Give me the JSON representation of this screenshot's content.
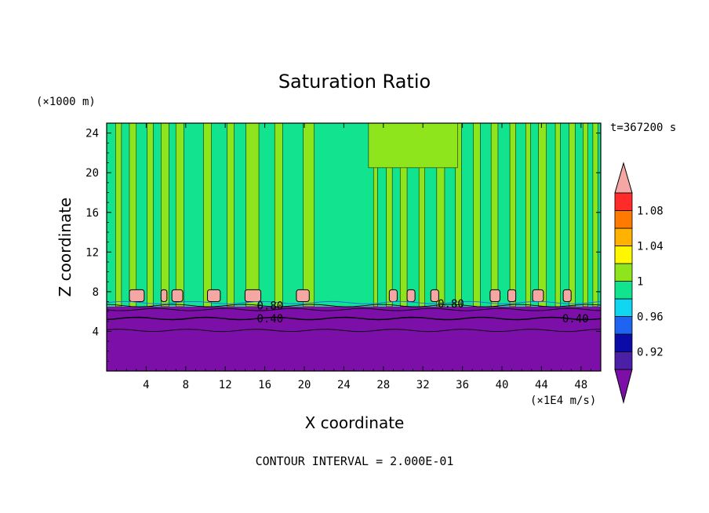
{
  "chart_data": {
    "type": "heatmap",
    "title": "Saturation Ratio",
    "xlabel": "X coordinate",
    "ylabel": "Z coordinate",
    "x_unit": "(×1E4 m/s)",
    "y_unit": "(×1000 m)",
    "time_label": "t=367200 s",
    "footer": "CONTOUR INTERVAL = 2.000E-01",
    "xlim": [
      0,
      50
    ],
    "ylim": [
      0,
      25
    ],
    "x_ticks": [
      4,
      8,
      12,
      16,
      20,
      24,
      28,
      32,
      36,
      40,
      44,
      48
    ],
    "y_ticks": [
      4,
      8,
      12,
      16,
      20,
      24
    ],
    "x_tick_labels": [
      "4",
      "8",
      "12",
      "16",
      "20",
      "24",
      "28",
      "32",
      "36",
      "40",
      "44",
      "48"
    ],
    "y_tick_labels": [
      "4",
      "8",
      "12",
      "16",
      "20",
      "24"
    ],
    "contour_labels": [
      {
        "text": "0.80",
        "x": 15.2,
        "y": 6.6
      },
      {
        "text": "0.40",
        "x": 15.2,
        "y": 5.3
      },
      {
        "text": "0.80",
        "x": 33.5,
        "y": 6.8
      },
      {
        "text": "0.40",
        "x": 46.1,
        "y": 5.3
      }
    ],
    "colorbar": {
      "levels": [
        0.9,
        0.92,
        0.94,
        0.96,
        0.98,
        1.0,
        1.02,
        1.04,
        1.06,
        1.08,
        1.1
      ],
      "colors": [
        "#4b1fa6",
        "#0b0ba8",
        "#1e64f0",
        "#11d6f2",
        "#12e38e",
        "#8fe51c",
        "#fff700",
        "#ffb300",
        "#ff7a00",
        "#ff2a2a"
      ],
      "under_color": "#7b0fa8",
      "over_color": "#f4a7a3",
      "labels": [
        {
          "value": 0.92,
          "text": "0.92"
        },
        {
          "value": 0.96,
          "text": "0.96"
        },
        {
          "value": 1.0,
          "text": "1"
        },
        {
          "value": 1.04,
          "text": "1.04"
        },
        {
          "value": 1.08,
          "text": "1.08"
        }
      ]
    },
    "field": {
      "lower_layer_top": 6.5,
      "lower_layer_value": 0.5,
      "background_value": 0.99,
      "bands_value": 1.01,
      "bands": [
        [
          0.9,
          1.5
        ],
        [
          2.3,
          3.0
        ],
        [
          4.1,
          4.7
        ],
        [
          5.5,
          6.3
        ],
        [
          7.0,
          7.8
        ],
        [
          9.8,
          10.6
        ],
        [
          12.2,
          12.9
        ],
        [
          14.1,
          15.4
        ],
        [
          17.0,
          17.8
        ],
        [
          19.9,
          21.0
        ],
        [
          27.0,
          27.4
        ],
        [
          28.3,
          28.9
        ],
        [
          29.7,
          30.4
        ],
        [
          31.6,
          32.2
        ],
        [
          33.4,
          34.2
        ],
        [
          35.3,
          35.9
        ],
        [
          37.1,
          37.8
        ],
        [
          38.9,
          39.6
        ],
        [
          40.8,
          41.4
        ],
        [
          42.4,
          42.9
        ],
        [
          43.7,
          44.5
        ],
        [
          45.4,
          45.9
        ],
        [
          46.8,
          47.4
        ],
        [
          48.2,
          48.7
        ],
        [
          49.2,
          49.7
        ]
      ],
      "upper_band_region": {
        "x0": 26.5,
        "x1": 35.5,
        "y0": 20.5,
        "value": 1.01
      },
      "cells_value": 1.1,
      "cells": [
        [
          2.3,
          3.8
        ],
        [
          5.5,
          6.1
        ],
        [
          6.6,
          7.7
        ],
        [
          10.2,
          11.5
        ],
        [
          14.0,
          15.6
        ],
        [
          19.2,
          20.5
        ],
        [
          28.6,
          29.4
        ],
        [
          30.4,
          31.2
        ],
        [
          32.8,
          33.6
        ],
        [
          38.8,
          39.8
        ],
        [
          40.6,
          41.4
        ],
        [
          43.1,
          44.2
        ],
        [
          46.2,
          47.0
        ]
      ],
      "cell_bottom": 7.0,
      "cell_top": 8.2
    },
    "grid": false,
    "legend": "colorbar-right"
  }
}
